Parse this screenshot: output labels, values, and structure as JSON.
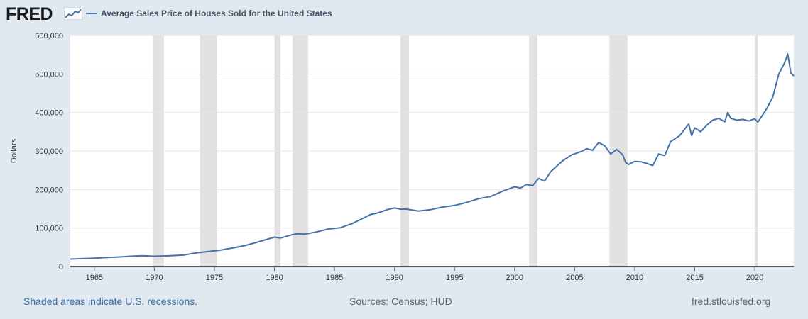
{
  "header": {
    "logo_text": "FRED",
    "legend_label": "Average Sales Price of Houses Sold for the United States",
    "series_color": "#4572a7"
  },
  "footer": {
    "recessions_note": "Shaded areas indicate U.S. recessions.",
    "sources": "Sources: Census; HUD",
    "site": "fred.stlouisfed.org"
  },
  "chart_data": {
    "type": "line",
    "title": "Average Sales Price of Houses Sold for the United States",
    "xlabel": "",
    "ylabel": "Dollars",
    "xlim": [
      1963.0,
      2023.25
    ],
    "ylim": [
      0,
      600000
    ],
    "y_ticks": [
      0,
      100000,
      200000,
      300000,
      400000,
      500000,
      600000
    ],
    "y_tick_labels": [
      "0",
      "100,000",
      "200,000",
      "300,000",
      "400,000",
      "500,000",
      "600,000"
    ],
    "x_ticks": [
      1965,
      1970,
      1975,
      1980,
      1985,
      1990,
      1995,
      2000,
      2005,
      2010,
      2015,
      2020
    ],
    "x_tick_labels": [
      "1965",
      "1970",
      "1975",
      "1980",
      "1985",
      "1990",
      "1995",
      "2000",
      "2005",
      "2010",
      "2015",
      "2020"
    ],
    "grid": true,
    "recessions": [
      [
        1969.9,
        1970.8
      ],
      [
        1973.8,
        1975.2
      ],
      [
        1980.0,
        1980.5
      ],
      [
        1981.5,
        1982.8
      ],
      [
        1990.5,
        1991.2
      ],
      [
        2001.2,
        2001.9
      ],
      [
        2007.9,
        2009.4
      ],
      [
        2020.0,
        2020.25
      ]
    ],
    "series": [
      {
        "name": "Average Sales Price of Houses Sold for the United States",
        "x": [
          1963.0,
          1964.0,
          1965.0,
          1966.0,
          1967.0,
          1968.0,
          1969.0,
          1970.0,
          1970.75,
          1971.5,
          1972.5,
          1973.5,
          1974.5,
          1975.5,
          1976.5,
          1977.5,
          1978.5,
          1979.5,
          1980.0,
          1980.5,
          1981.5,
          1982.0,
          1982.5,
          1983.5,
          1984.5,
          1985.5,
          1986.5,
          1987.5,
          1988.0,
          1988.5,
          1989.5,
          1990.0,
          1990.5,
          1991.0,
          1992.0,
          1992.5,
          1993.0,
          1994.0,
          1995.0,
          1996.0,
          1997.0,
          1998.0,
          1999.0,
          2000.0,
          2000.5,
          2001.0,
          2001.5,
          2002.0,
          2002.5,
          2003.0,
          2004.0,
          2004.75,
          2005.5,
          2006.0,
          2006.5,
          2007.0,
          2007.5,
          2008.0,
          2008.5,
          2009.0,
          2009.25,
          2009.5,
          2010.0,
          2010.5,
          2011.0,
          2011.5,
          2012.0,
          2012.5,
          2013.0,
          2013.75,
          2014.5,
          2014.75,
          2015.0,
          2015.5,
          2016.0,
          2016.5,
          2017.0,
          2017.5,
          2017.75,
          2018.0,
          2018.5,
          2019.0,
          2019.5,
          2020.0,
          2020.25,
          2020.75,
          2021.0,
          2021.5,
          2022.0,
          2022.5,
          2022.75,
          2023.0,
          2023.25
        ],
        "values": [
          19300,
          20500,
          21500,
          23300,
          24600,
          26600,
          27900,
          26600,
          27500,
          28300,
          30000,
          35500,
          38900,
          42600,
          48000,
          54200,
          62500,
          71800,
          76400,
          74000,
          83000,
          85000,
          84000,
          89800,
          97600,
          100800,
          111900,
          127200,
          135000,
          138300,
          148800,
          152000,
          149000,
          149000,
          144100,
          146000,
          147700,
          154500,
          158700,
          166400,
          176200,
          181900,
          195600,
          207000,
          204000,
          213200,
          210000,
          228700,
          222000,
          246300,
          274500,
          290000,
          298000,
          305900,
          302000,
          322000,
          313600,
          292000,
          304000,
          290000,
          270000,
          265000,
          272900,
          272000,
          267900,
          262000,
          292200,
          288000,
          324500,
          340000,
          370000,
          340000,
          360000,
          350000,
          367000,
          380000,
          384900,
          376000,
          400000,
          385000,
          380000,
          382000,
          378000,
          383900,
          375000,
          398000,
          410000,
          440000,
          500000,
          530000,
          552000,
          503000,
          495000
        ]
      }
    ]
  }
}
